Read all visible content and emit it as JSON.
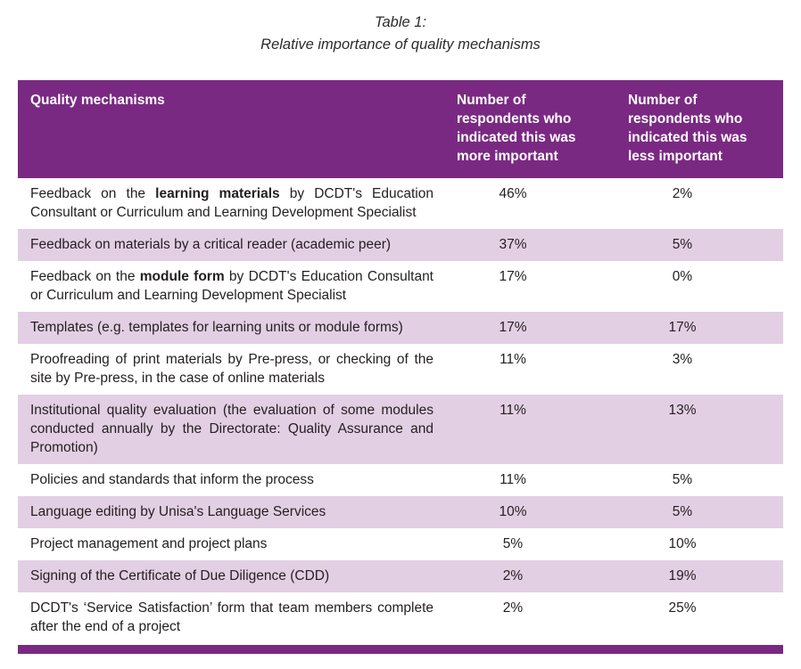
{
  "caption": {
    "line1": "Table 1:",
    "line2": "Relative importance of quality mechanisms"
  },
  "colors": {
    "header_bg": "#7a2982",
    "row_alt_bg": "#e3cfe4",
    "bottom_rule": "#7a2982",
    "header_text": "#ffffff",
    "body_text": "#231f20"
  },
  "table": {
    "columns": [
      "Quality mechanisms",
      "Number of respondents who indicated this was more important",
      "Number of respondents who indicated this was less important"
    ],
    "rows": [
      {
        "pre": "Feedback on the ",
        "bold": "learning materials",
        "post": " by DCDT's Education Consultant or Curriculum and Learning Development Specialist",
        "more": "46%",
        "less": "2%"
      },
      {
        "pre": "Feedback on materials by a critical reader (academic peer)",
        "bold": "",
        "post": "",
        "more": "37%",
        "less": "5%"
      },
      {
        "pre": "Feedback on the ",
        "bold": "module form",
        "post": " by DCDT's Education Consultant or Curriculum and Learning Development Specialist",
        "more": "17%",
        "less": "0%"
      },
      {
        "pre": "Templates (e.g. templates for learning units or module forms)",
        "bold": "",
        "post": "",
        "more": "17%",
        "less": "17%"
      },
      {
        "pre": "Proofreading of print materials by Pre-press, or checking of the site by Pre-press, in the case of online materials",
        "bold": "",
        "post": "",
        "more": "11%",
        "less": "3%"
      },
      {
        "pre": "Institutional quality evaluation (the evaluation of some modules conducted annually by the Directorate: Quality Assurance and Promotion)",
        "bold": "",
        "post": "",
        "more": "11%",
        "less": "13%"
      },
      {
        "pre": "Policies and standards that inform the process",
        "bold": "",
        "post": "",
        "more": "11%",
        "less": "5%"
      },
      {
        "pre": "Language editing by Unisa's Language Services",
        "bold": "",
        "post": "",
        "more": "10%",
        "less": "5%"
      },
      {
        "pre": "Project management and project plans",
        "bold": "",
        "post": "",
        "more": "5%",
        "less": "10%"
      },
      {
        "pre": "Signing of the Certificate of Due Diligence (CDD)",
        "bold": "",
        "post": "",
        "more": "2%",
        "less": "19%"
      },
      {
        "pre": "DCDT's ‘Service Satisfaction’ form that team members complete after the end of a project",
        "bold": "",
        "post": "",
        "more": "2%",
        "less": "25%"
      }
    ]
  }
}
